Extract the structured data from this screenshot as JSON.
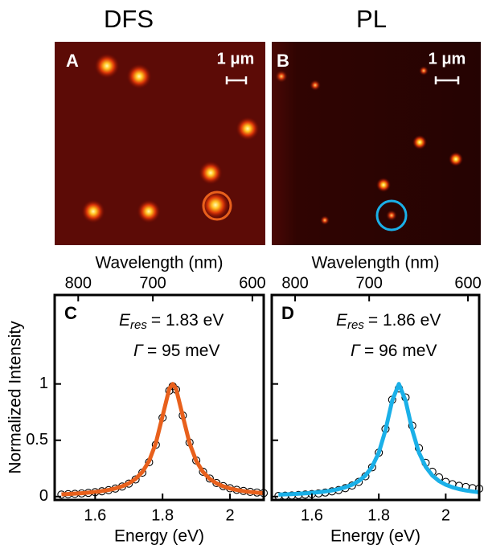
{
  "panels": [
    {
      "title": "DFS",
      "label": "A",
      "scale": "1 μm"
    },
    {
      "title": "PL",
      "label": "B",
      "scale": "1 μm"
    }
  ],
  "chart_data": [
    {
      "type": "line",
      "label": "C",
      "annotation": {
        "symbol": "E",
        "subscript": "res",
        "text": "= 1.83 eV",
        "symbol2": "Γ",
        "text2": "= 95 meV"
      },
      "xlabel": "Energy (eV)",
      "x2label": "Wavelength (nm)",
      "ylabel": "Normalized Intensity",
      "xlim": [
        1.48,
        2.1
      ],
      "ylim": [
        -0.03,
        1.79
      ],
      "xticks": [
        1.6,
        1.8,
        2
      ],
      "yticks": [
        0,
        0.5,
        1
      ],
      "x2ticks": [
        800,
        700,
        600
      ],
      "x": [
        1.5,
        1.52,
        1.54,
        1.56,
        1.58,
        1.6,
        1.62,
        1.64,
        1.66,
        1.68,
        1.7,
        1.72,
        1.74,
        1.76,
        1.78,
        1.8,
        1.82,
        1.83,
        1.84,
        1.86,
        1.88,
        1.9,
        1.92,
        1.94,
        1.96,
        1.98,
        2.0,
        2.02,
        2.04,
        2.06,
        2.08,
        2.1
      ],
      "series": [
        {
          "marker": "circle",
          "color": "#000000",
          "values": [
            0.018,
            0.021,
            0.024,
            0.028,
            0.033,
            0.039,
            0.047,
            0.057,
            0.071,
            0.089,
            0.115,
            0.152,
            0.212,
            0.305,
            0.46,
            0.7,
            0.94,
            0.98,
            0.95,
            0.72,
            0.48,
            0.32,
            0.22,
            0.16,
            0.12,
            0.093,
            0.074,
            0.06,
            0.05,
            0.042,
            0.036,
            0.031
          ]
        },
        {
          "color": "#e8601c",
          "values": [
            0.0203,
            0.0229,
            0.0261,
            0.03,
            0.0348,
            0.0409,
            0.0487,
            0.0588,
            0.0724,
            0.0911,
            0.1178,
            0.1571,
            0.2178,
            0.3153,
            0.4743,
            0.7148,
            0.9576,
            1,
            0.9576,
            0.7148,
            0.4743,
            0.3153,
            0.2178,
            0.1571,
            0.1178,
            0.0911,
            0.0724,
            0.0588,
            0.0487,
            0.0409,
            0.0348,
            0.03
          ]
        }
      ]
    },
    {
      "type": "line",
      "label": "D",
      "annotation": {
        "symbol": "E",
        "subscript": "res",
        "text": "= 1.86 eV",
        "symbol2": "Γ",
        "text2": "= 96 meV"
      },
      "xlabel": "Energy (eV)",
      "x2label": "Wavelength (nm)",
      "xlim": [
        1.48,
        2.1
      ],
      "ylim": [
        -0.03,
        1.79
      ],
      "xticks": [
        1.6,
        1.8,
        2
      ],
      "yticks": [
        0,
        0.5,
        1
      ],
      "ytick_labels": false,
      "x2ticks": [
        800,
        700,
        600
      ],
      "x": [
        1.5,
        1.52,
        1.54,
        1.56,
        1.58,
        1.6,
        1.62,
        1.64,
        1.66,
        1.68,
        1.7,
        1.72,
        1.74,
        1.76,
        1.78,
        1.8,
        1.82,
        1.84,
        1.86,
        1.88,
        1.9,
        1.92,
        1.94,
        1.96,
        1.98,
        2.0,
        2.02,
        2.04,
        2.06,
        2.08,
        2.1
      ],
      "series": [
        {
          "marker": "circle",
          "color": "#000000",
          "values": [
            0.005,
            0.008,
            0.01,
            0.014,
            0.018,
            0.022,
            0.028,
            0.036,
            0.046,
            0.058,
            0.075,
            0.098,
            0.13,
            0.18,
            0.26,
            0.39,
            0.6,
            0.86,
            0.96,
            0.88,
            0.63,
            0.43,
            0.3,
            0.22,
            0.17,
            0.13,
            0.11,
            0.095,
            0.085,
            0.075,
            0.07
          ]
        },
        {
          "color": "#1ab0e8",
          "values": [
            0.0175,
            0.0195,
            0.022,
            0.025,
            0.0285,
            0.033,
            0.0385,
            0.0454,
            0.0545,
            0.0664,
            0.0826,
            0.1052,
            0.1379,
            0.1873,
            0.2647,
            0.3902,
            0.5902,
            0.8521,
            1,
            0.8521,
            0.5902,
            0.3902,
            0.2647,
            0.1873,
            0.1379,
            0.1052,
            0.0826,
            0.0664,
            0.0545,
            0.0454,
            0.0385
          ]
        }
      ]
    }
  ]
}
